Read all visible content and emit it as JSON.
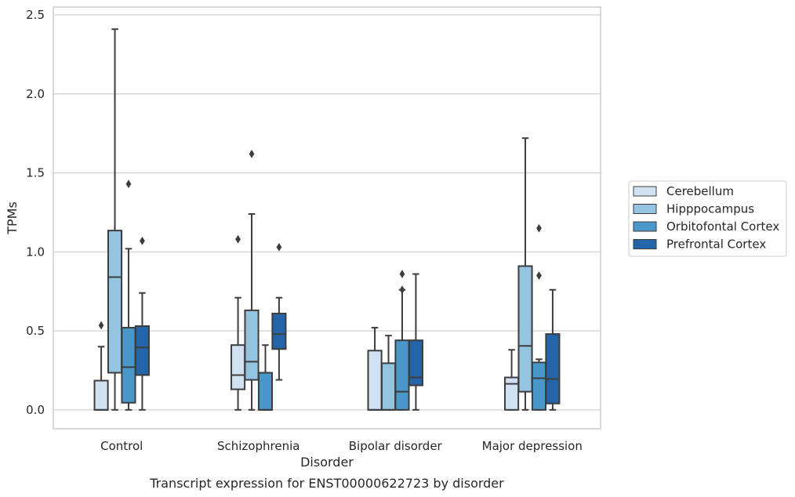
{
  "chart_data": {
    "type": "boxplot",
    "caption": "Transcript expression for ENST00000622723 by disorder",
    "xlabel": "Disorder",
    "ylabel": "TPMs",
    "ylim": [
      -0.12,
      2.55
    ],
    "yticks": [
      0.0,
      0.5,
      1.0,
      1.5,
      2.0,
      2.5
    ],
    "ytick_labels": [
      "0.0",
      "0.5",
      "1.0",
      "1.5",
      "2.0",
      "2.5"
    ],
    "categories": [
      "Control",
      "Schizophrenia",
      "Bipolar disorder",
      "Major depression"
    ],
    "grid": true,
    "legend_position": "right",
    "series": [
      {
        "name": "Cerebellum",
        "color": "#d0e1f2",
        "boxes": [
          {
            "lower_whisker": 0.0,
            "q1": 0.0,
            "median": 0.0,
            "q3": 0.185,
            "upper_whisker": 0.4,
            "outliers": [
              0.535
            ]
          },
          {
            "lower_whisker": 0.0,
            "q1": 0.13,
            "median": 0.22,
            "q3": 0.41,
            "upper_whisker": 0.71,
            "outliers": [
              1.08
            ]
          },
          {
            "lower_whisker": 0.0,
            "q1": 0.0,
            "median": 0.0,
            "q3": 0.375,
            "upper_whisker": 0.52,
            "outliers": []
          },
          {
            "lower_whisker": 0.0,
            "q1": 0.0,
            "median": 0.165,
            "q3": 0.205,
            "upper_whisker": 0.38,
            "outliers": []
          }
        ]
      },
      {
        "name": "Hipppocampus",
        "color": "#94c4df",
        "boxes": [
          {
            "lower_whisker": 0.0,
            "q1": 0.235,
            "median": 0.84,
            "q3": 1.135,
            "upper_whisker": 2.41,
            "outliers": []
          },
          {
            "lower_whisker": 0.0,
            "q1": 0.19,
            "median": 0.305,
            "q3": 0.63,
            "upper_whisker": 1.24,
            "outliers": [
              1.62
            ]
          },
          {
            "lower_whisker": 0.0,
            "q1": 0.0,
            "median": 0.0,
            "q3": 0.295,
            "upper_whisker": 0.47,
            "outliers": []
          },
          {
            "lower_whisker": 0.0,
            "q1": 0.115,
            "median": 0.405,
            "q3": 0.91,
            "upper_whisker": 1.72,
            "outliers": []
          }
        ]
      },
      {
        "name": "Orbitofontal Cortex",
        "color": "#4a98c9",
        "boxes": [
          {
            "lower_whisker": 0.0,
            "q1": 0.045,
            "median": 0.27,
            "q3": 0.52,
            "upper_whisker": 1.02,
            "outliers": [
              1.43
            ]
          },
          {
            "lower_whisker": 0.0,
            "q1": 0.0,
            "median": 0.0,
            "q3": 0.235,
            "upper_whisker": 0.41,
            "outliers": []
          },
          {
            "lower_whisker": 0.0,
            "q1": 0.0,
            "median": 0.115,
            "q3": 0.44,
            "upper_whisker": 0.76,
            "outliers": [
              0.76,
              0.86
            ]
          },
          {
            "lower_whisker": 0.0,
            "q1": 0.0,
            "median": 0.2,
            "q3": 0.3,
            "upper_whisker": 0.32,
            "outliers": [
              0.85,
              1.15
            ]
          }
        ]
      },
      {
        "name": "Prefrontal Cortex",
        "color": "#2464a8",
        "boxes": [
          {
            "lower_whisker": 0.0,
            "q1": 0.22,
            "median": 0.395,
            "q3": 0.53,
            "upper_whisker": 0.74,
            "outliers": [
              1.07
            ]
          },
          {
            "lower_whisker": 0.19,
            "q1": 0.385,
            "median": 0.48,
            "q3": 0.61,
            "upper_whisker": 0.71,
            "outliers": [
              1.03
            ]
          },
          {
            "lower_whisker": 0.0,
            "q1": 0.155,
            "median": 0.205,
            "q3": 0.44,
            "upper_whisker": 0.86,
            "outliers": []
          },
          {
            "lower_whisker": 0.0,
            "q1": 0.04,
            "median": 0.195,
            "q3": 0.48,
            "upper_whisker": 0.76,
            "outliers": []
          }
        ]
      }
    ]
  }
}
